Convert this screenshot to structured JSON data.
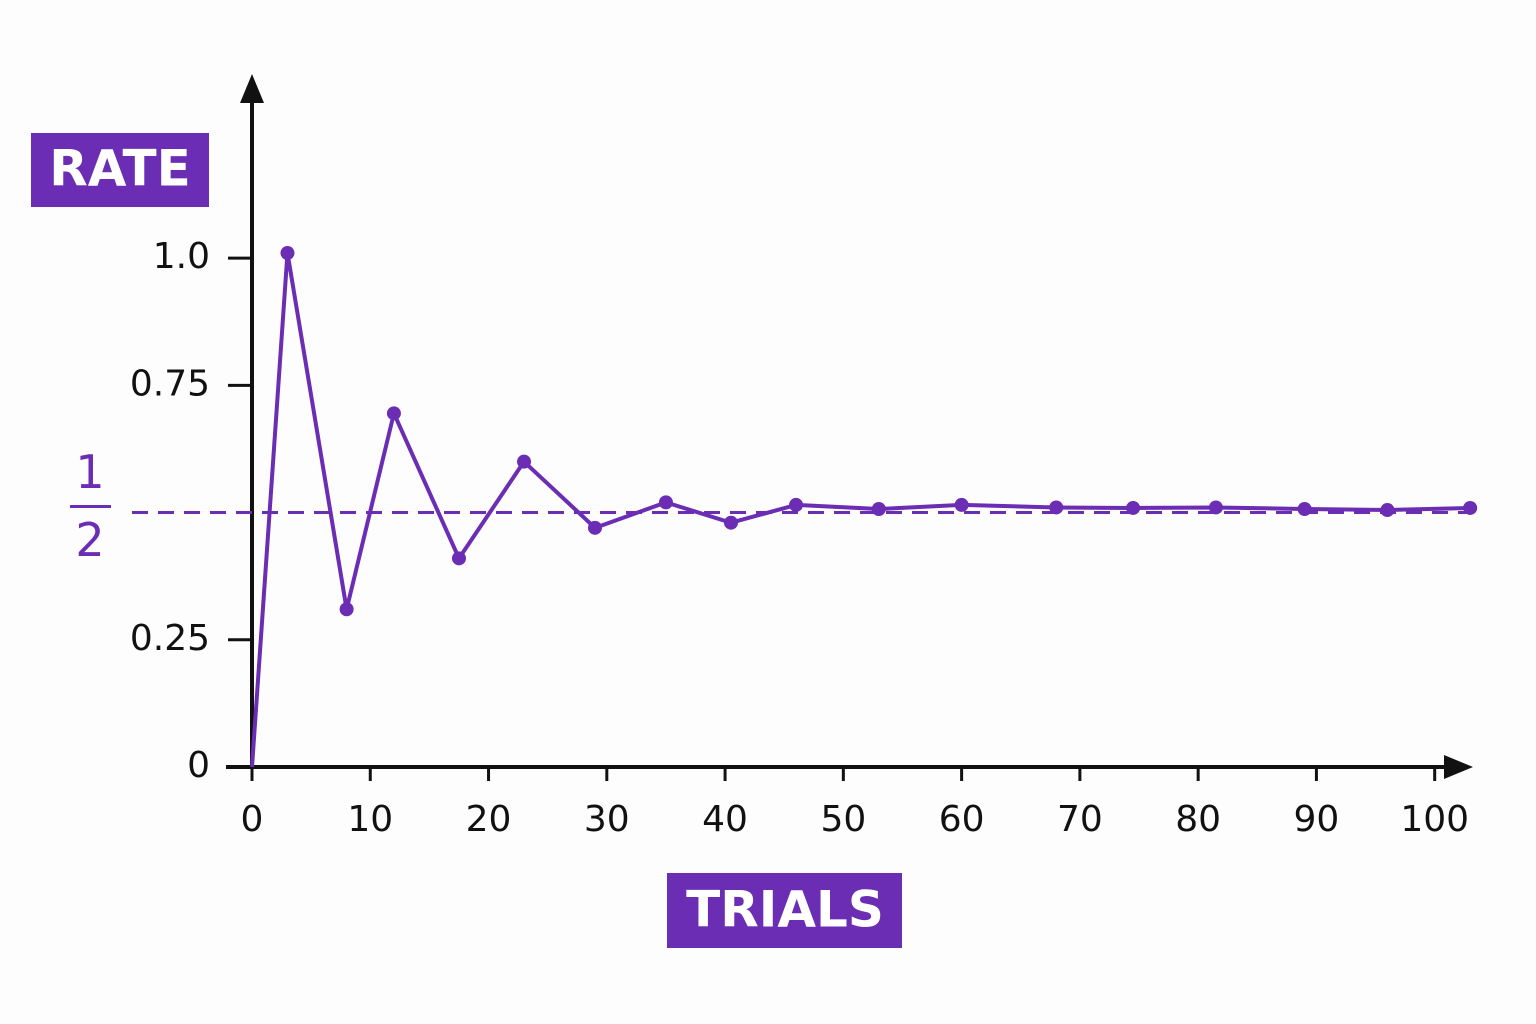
{
  "chart_data": {
    "type": "line",
    "y_label": "RATE",
    "x_label": "TRIALS",
    "x": [
      0,
      3,
      8,
      12,
      17.5,
      23,
      29,
      35,
      40.5,
      46,
      53,
      60,
      68,
      74.5,
      81.5,
      89,
      96,
      103
    ],
    "series": [
      {
        "color": "#6a2db3",
        "values": [
          0,
          1.01,
          0.31,
          0.695,
          0.41,
          0.6,
          0.47,
          0.52,
          0.48,
          0.515,
          0.507,
          0.515,
          0.51,
          0.509,
          0.51,
          0.507,
          0.505,
          0.509
        ]
      }
    ],
    "xlim": [
      0,
      104
    ],
    "ylim": [
      0,
      1.35
    ],
    "xticks": [
      0,
      10,
      20,
      30,
      40,
      50,
      60,
      70,
      80,
      90,
      100
    ],
    "yticks": [
      0,
      0.25,
      0.75,
      {
        "value": 1,
        "label": "1.0"
      }
    ],
    "reference_line": {
      "value": 0.5,
      "numerator": "1",
      "denominator": "2"
    }
  }
}
